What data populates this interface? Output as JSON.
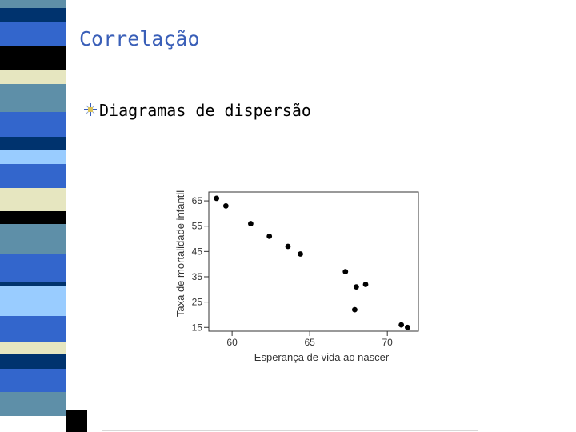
{
  "slide": {
    "title": "Correlação",
    "bullet_text": "Diagramas de dispersão"
  },
  "colors": {
    "title": "#3a5fb8",
    "strip_bands": [
      "#5e8fa8",
      "#00336e",
      "#3366cc",
      "#000000",
      "#e6e6c0",
      "#5e8fa8",
      "#3366cc",
      "#00336e",
      "#99ccff",
      "#3366cc",
      "#e6e6c0",
      "#000000",
      "#5e8fa8",
      "#3366cc",
      "#00336e",
      "#99ccff",
      "#3366cc",
      "#e6e6c0",
      "#00336e",
      "#3366cc",
      "#5e8fa8"
    ]
  },
  "chart_data": {
    "type": "scatter",
    "xlabel": "Esperança de vida ao nascer",
    "ylabel": "Taxa de mortalidade infantil",
    "xlim": [
      58.5,
      72.0
    ],
    "ylim": [
      13.5,
      68.5
    ],
    "xticks": [
      60,
      65,
      70
    ],
    "yticks": [
      15,
      25,
      35,
      45,
      55,
      65
    ],
    "grid": false,
    "points": [
      {
        "x": 59.0,
        "y": 66
      },
      {
        "x": 59.6,
        "y": 63
      },
      {
        "x": 61.2,
        "y": 56
      },
      {
        "x": 62.4,
        "y": 51
      },
      {
        "x": 63.6,
        "y": 47
      },
      {
        "x": 64.4,
        "y": 44
      },
      {
        "x": 67.3,
        "y": 37
      },
      {
        "x": 68.0,
        "y": 31
      },
      {
        "x": 68.6,
        "y": 32
      },
      {
        "x": 67.9,
        "y": 22
      },
      {
        "x": 70.9,
        "y": 16
      },
      {
        "x": 71.3,
        "y": 15
      }
    ]
  }
}
